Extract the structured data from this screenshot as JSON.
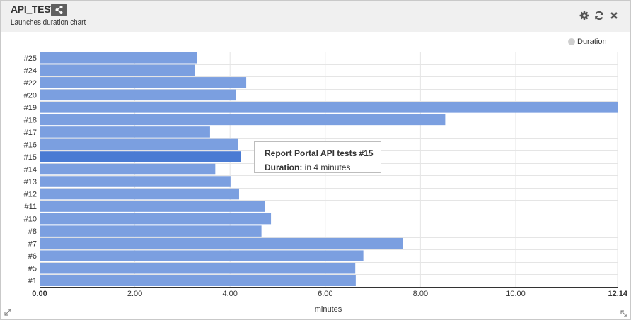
{
  "widget": {
    "title": "API_TESTS",
    "subtitle": "Launches duration chart",
    "icons": [
      "share-icon",
      "gear-icon",
      "refresh-icon",
      "close-icon",
      "expand-icon",
      "resize-icon"
    ]
  },
  "legend": {
    "label": "Duration",
    "color": "#cfcfcf"
  },
  "tooltip": {
    "title": "Report Portal API tests #15",
    "label": "Duration:",
    "value": "in 4 minutes"
  },
  "colors": {
    "bar": "#7b9fe0",
    "bar_highlight": "#4a7bd3",
    "grid": "#e5e5e5",
    "axis": "#333333"
  },
  "chart_data": {
    "type": "bar",
    "orientation": "horizontal",
    "categories": [
      "#25",
      "#24",
      "#22",
      "#20",
      "#19",
      "#18",
      "#17",
      "#16",
      "#15",
      "#14",
      "#13",
      "#12",
      "#11",
      "#10",
      "#8",
      "#7",
      "#6",
      "#5",
      "#1"
    ],
    "series": [
      {
        "name": "Duration",
        "values": [
          3.3,
          3.26,
          4.34,
          4.12,
          12.14,
          8.52,
          3.58,
          4.17,
          4.22,
          3.69,
          4.01,
          4.19,
          4.74,
          4.86,
          4.66,
          7.63,
          6.8,
          6.63,
          6.64
        ]
      }
    ],
    "highlight": "#15",
    "xlabel": "minutes",
    "xlim": [
      0,
      12.14
    ],
    "xticks": [
      "0.00",
      "2.00",
      "4.00",
      "6.00",
      "8.00",
      "10.00",
      "12.14"
    ],
    "grid": true,
    "legend": "top-right"
  }
}
